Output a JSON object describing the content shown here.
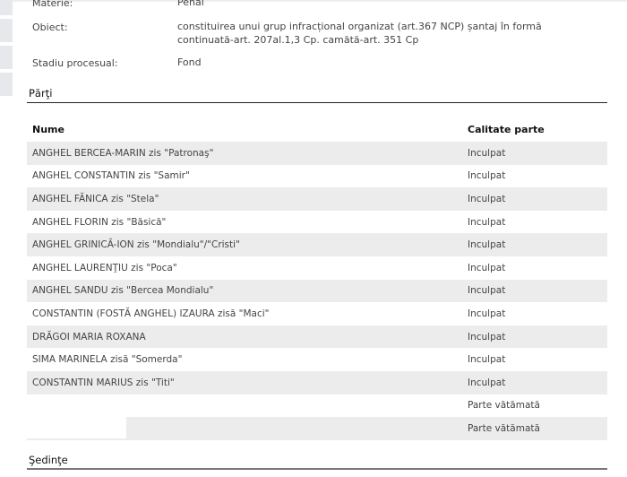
{
  "details": [
    {
      "label": "Materie:",
      "value": "Penal"
    },
    {
      "label": "Obiect:",
      "value": "constituirea unui grup infracțional organizat (art.367 NCP) șantaj în formă continuată-art. 207al.1,3 Cp. camătă-art. 351 Cp"
    },
    {
      "label": "Stadiu procesual:",
      "value": "Fond"
    }
  ],
  "parti": {
    "title": "Părţi",
    "headers": {
      "name": "Nume",
      "role": "Calitate parte"
    },
    "rows": [
      {
        "name": "ANGHEL BERCEA-MARIN zis \"Patronaş\"",
        "role": "Inculpat"
      },
      {
        "name": "ANGHEL CONSTANTIN zis \"Samir\"",
        "role": "Inculpat"
      },
      {
        "name": "ANGHEL FĂNICA zis \"Stela\"",
        "role": "Inculpat"
      },
      {
        "name": "ANGHEL FLORIN zis \"Băsică\"",
        "role": "Inculpat"
      },
      {
        "name": "ANGHEL GRINICĂ-ION zis \"Mondialu\"/\"Cristi\"",
        "role": "Inculpat"
      },
      {
        "name": "ANGHEL LAURENŢIU zis \"Poca\"",
        "role": "Inculpat"
      },
      {
        "name": "ANGHEL SANDU zis \"Bercea Mondialu\"",
        "role": "Inculpat"
      },
      {
        "name": "CONSTANTIN (FOSTĂ ANGHEL) IZAURA zisă \"Maci\"",
        "role": "Inculpat"
      },
      {
        "name": "DRĂGOI MARIA ROXANA",
        "role": "Inculpat"
      },
      {
        "name": "SIMA MARINELA zisă \"Somerda\"",
        "role": "Inculpat"
      },
      {
        "name": "CONSTANTIN MARIUS zis \"Titi\"",
        "role": "Inculpat"
      },
      {
        "name": "",
        "role": "Parte vătămată"
      },
      {
        "name": "",
        "role": "Parte vătămată"
      }
    ]
  },
  "sedinte": {
    "title": "Şedinţe"
  }
}
